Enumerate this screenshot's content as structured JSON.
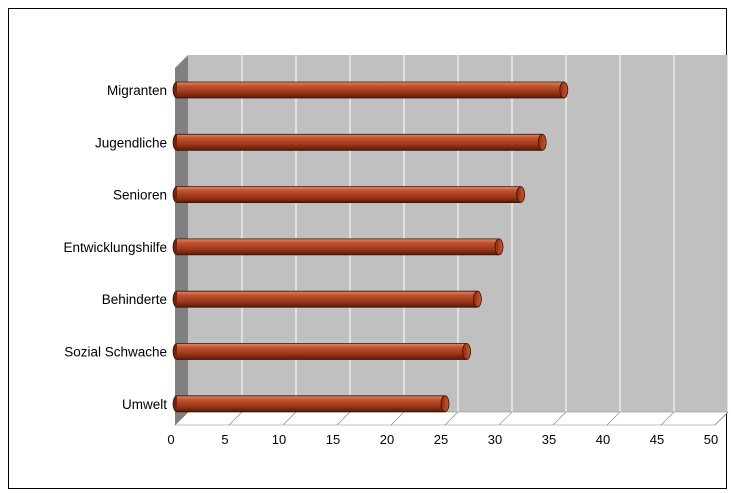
{
  "chart_data": {
    "type": "bar",
    "orientation": "horizontal",
    "style": "3d-cylinder",
    "categories": [
      "Migranten",
      "Jugendliche",
      "Senioren",
      "Entwicklungshilfe",
      "Behinderte",
      "Sozial Schwache",
      "Umwelt"
    ],
    "values": [
      36,
      34,
      32,
      30,
      28,
      27,
      25
    ],
    "xlim": [
      0,
      50
    ],
    "x_ticks": [
      "0",
      "5",
      "10",
      "15",
      "20",
      "25",
      "30",
      "35",
      "40",
      "45",
      "50"
    ],
    "grid": true,
    "title": "",
    "xlabel": "",
    "ylabel": "",
    "colors": {
      "bar": "#a33a1c",
      "bar_dark": "#6e2410",
      "bar_highlight": "#d8754f",
      "plot_background": "#c0c0c0",
      "floor": "#ffffff",
      "wall": "#808080",
      "gridline": "#ffffff"
    }
  }
}
